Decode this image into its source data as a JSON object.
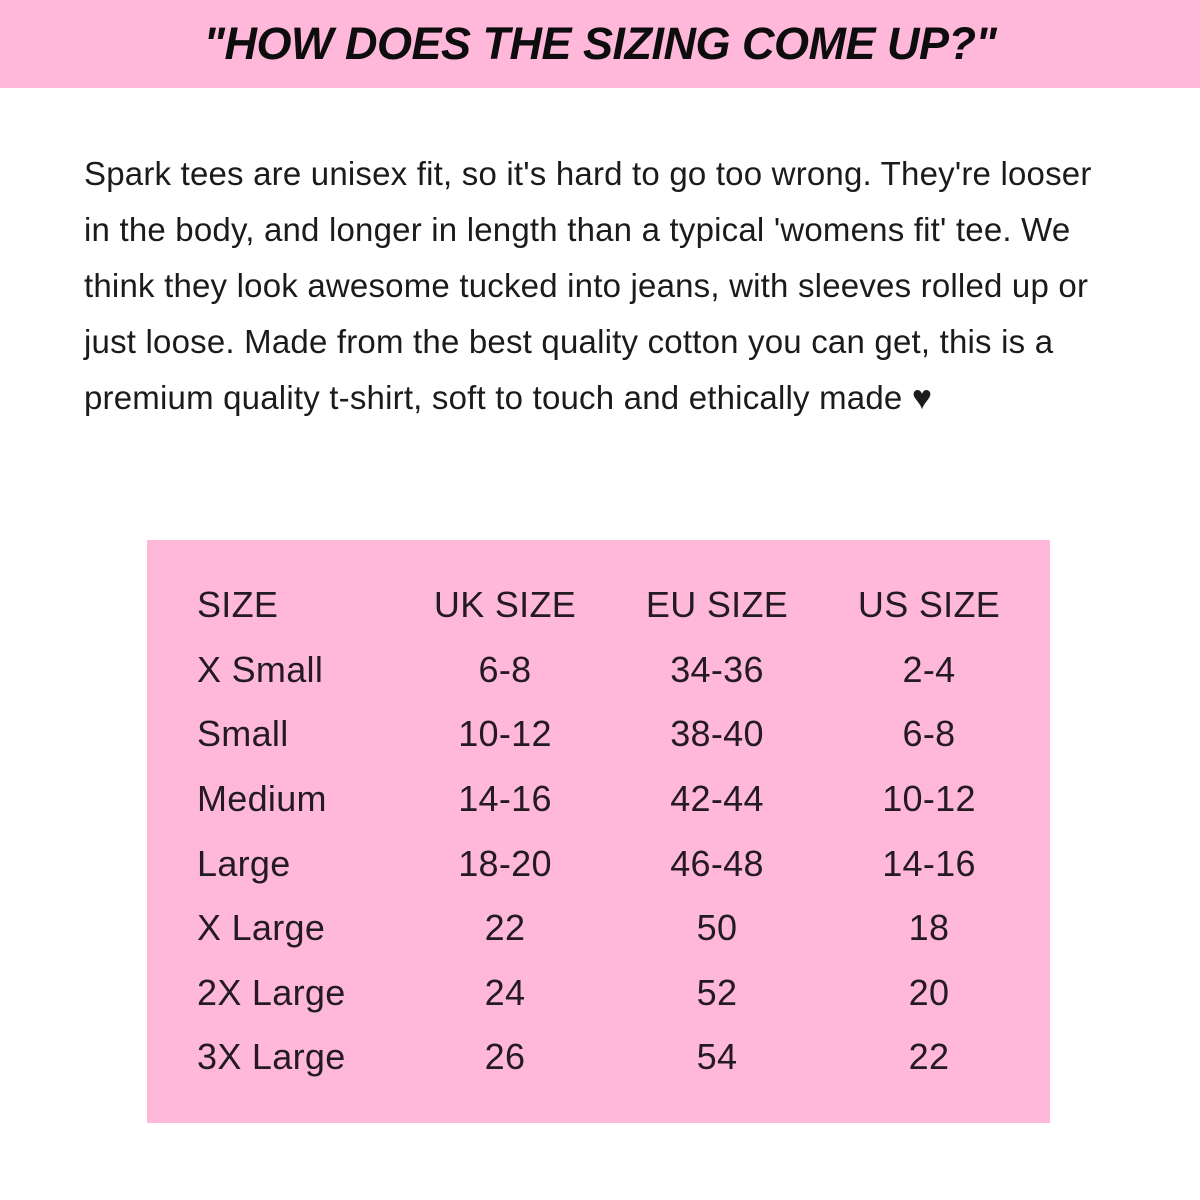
{
  "header": {
    "title": "\"HOW DOES THE SIZING COME UP?\""
  },
  "description": {
    "text": "Spark tees are unisex fit, so it's hard to go too wrong. They're looser in the body, and longer in length than a typical 'womens fit' tee. We think they look awesome tucked into jeans, with sleeves rolled up or just loose. Made from the best quality cotton you can get, this is a premium quality t-shirt, soft to touch and ethically made",
    "heart": "♥"
  },
  "sizing_table": {
    "columns": [
      "SIZE",
      "UK SIZE",
      "EU SIZE",
      "US SIZE"
    ],
    "rows": [
      {
        "size": "X Small",
        "uk": "6-8",
        "eu": "34-36",
        "us": "2-4"
      },
      {
        "size": "Small",
        "uk": "10-12",
        "eu": "38-40",
        "us": "6-8"
      },
      {
        "size": "Medium",
        "uk": "14-16",
        "eu": "42-44",
        "us": "10-12"
      },
      {
        "size": "Large",
        "uk": "18-20",
        "eu": "46-48",
        "us": "14-16"
      },
      {
        "size": "X Large",
        "uk": "22",
        "eu": "50",
        "us": "18"
      },
      {
        "size": "2X Large",
        "uk": "24",
        "eu": "52",
        "us": "20"
      },
      {
        "size": "3X Large",
        "uk": "26",
        "eu": "54",
        "us": "22"
      }
    ]
  },
  "colors": {
    "pink": "#ffb8d9",
    "title_text": "#0d0d0d",
    "body_text": "#1b1b1d",
    "background": "#ffffff"
  }
}
